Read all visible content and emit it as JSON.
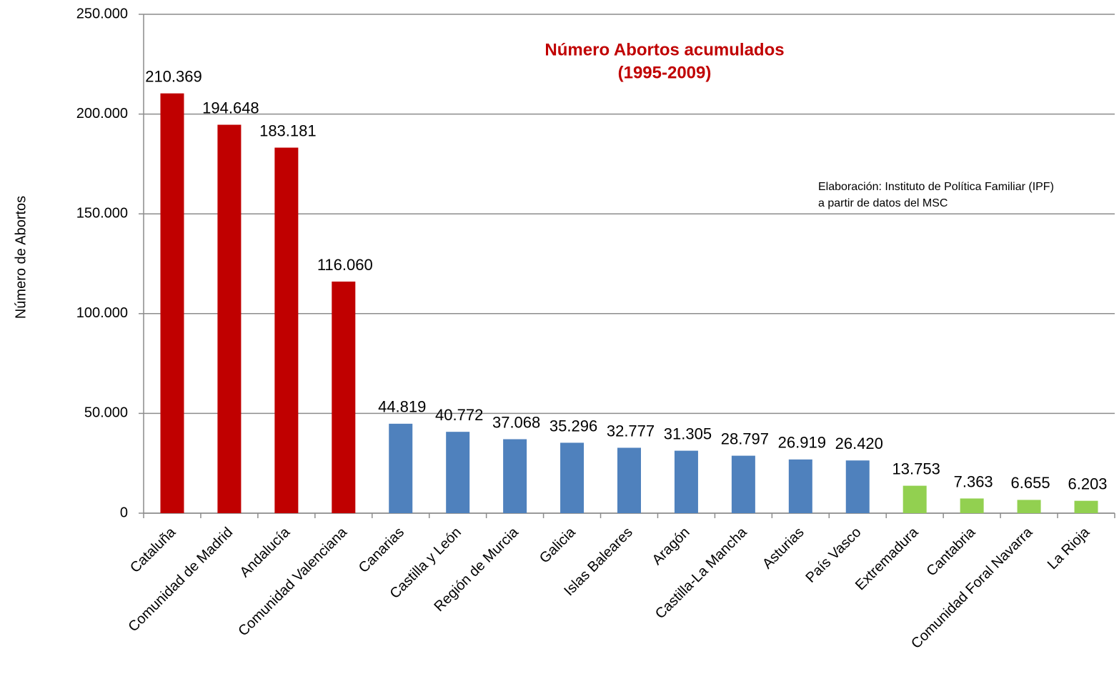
{
  "chart_data": {
    "type": "bar",
    "title": "Número Abortos acumulados",
    "subtitle": "(1995-2009)",
    "annotation": [
      "Elaboración: Instituto de Política Familiar (IPF)",
      "a partir de datos del MSC"
    ],
    "y_label": "Número de Abortos",
    "categories": [
      "Cataluña",
      "Comunidad de Madrid",
      "Andalucía",
      "Comunidad Valenciana",
      "Canarias",
      "Castilla y León",
      "Región de Murcia",
      "Galicia",
      "Islas Baleares",
      "Aragón",
      "Castilla-La Mancha",
      "Asturias",
      "País Vasco",
      "Extremadura",
      "Cantabria",
      "Comunidad Foral Navarra",
      "La Rioja"
    ],
    "values": [
      210369,
      194648,
      183181,
      116060,
      44819,
      40772,
      37068,
      35296,
      32777,
      31305,
      28797,
      26919,
      26420,
      13753,
      7363,
      6655,
      6203
    ],
    "value_labels": [
      "210.369",
      "194.648",
      "183.181",
      "116.060",
      "44.819",
      "40.772",
      "37.068",
      "35.296",
      "32.777",
      "31.305",
      "28.797",
      "26.919",
      "26.420",
      "13.753",
      "7.363",
      "6.655",
      "6.203"
    ],
    "colors": [
      "#c00000",
      "#c00000",
      "#c00000",
      "#c00000",
      "#4f81bd",
      "#4f81bd",
      "#4f81bd",
      "#4f81bd",
      "#4f81bd",
      "#4f81bd",
      "#4f81bd",
      "#4f81bd",
      "#4f81bd",
      "#92d050",
      "#92d050",
      "#92d050",
      "#92d050"
    ],
    "ylim": [
      0,
      250000
    ],
    "yticks": [
      0,
      {
        "value": 50000,
        "label": "50.000"
      },
      {
        "value": 100000,
        "label": "100.000"
      },
      {
        "value": 150000,
        "label": "150.000"
      },
      {
        "value": 200000,
        "label": "200.000"
      },
      {
        "value": 250000,
        "label": "250.000"
      }
    ],
    "grid": true
  }
}
